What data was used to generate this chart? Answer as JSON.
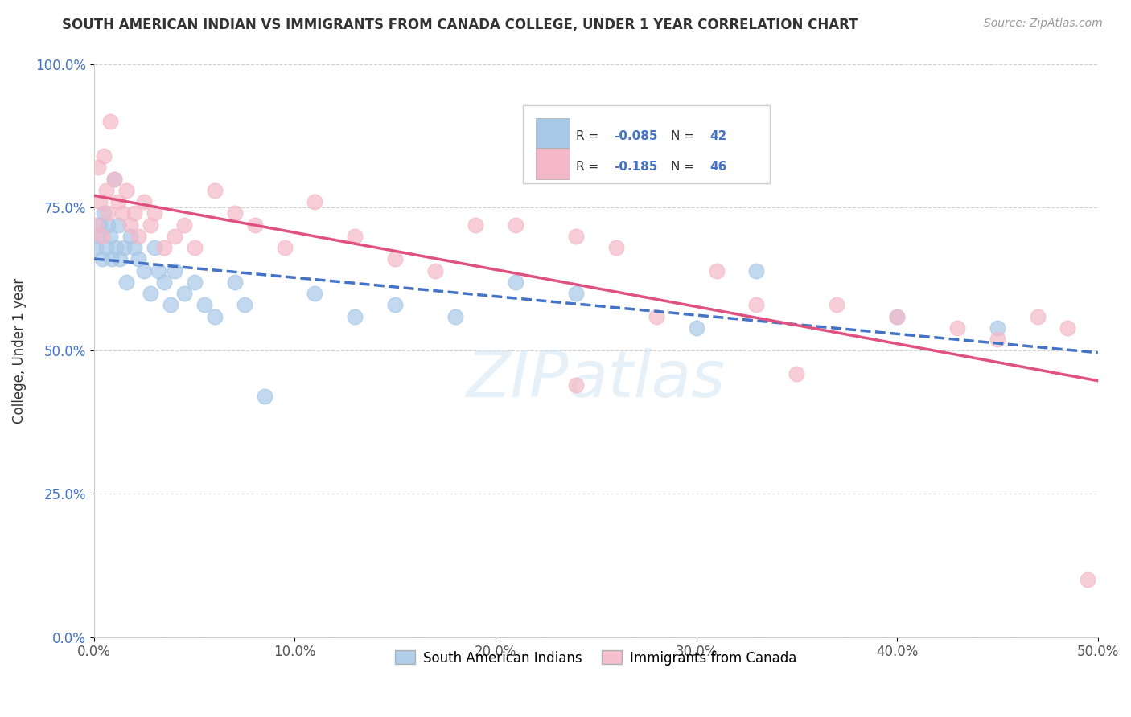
{
  "title": "SOUTH AMERICAN INDIAN VS IMMIGRANTS FROM CANADA COLLEGE, UNDER 1 YEAR CORRELATION CHART",
  "source_text": "Source: ZipAtlas.com",
  "ylabel": "College, Under 1 year",
  "xticklabels": [
    "0.0%",
    "10.0%",
    "20.0%",
    "30.0%",
    "40.0%",
    "50.0%"
  ],
  "yticklabels": [
    "0.0%",
    "25.0%",
    "50.0%",
    "75.0%",
    "100.0%"
  ],
  "xlim": [
    0,
    0.5
  ],
  "ylim": [
    0,
    1.0
  ],
  "legend_label1": "South American Indians",
  "legend_label2": "Immigrants from Canada",
  "R1": -0.085,
  "N1": 42,
  "R2": -0.185,
  "N2": 46,
  "color_blue": "#a8c8e8",
  "color_pink": "#f4b8c8",
  "line_color_blue": "#4472c4",
  "line_color_pink": "#e05080",
  "background_color": "#ffffff",
  "blue_x": [
    0.001,
    0.002,
    0.003,
    0.004,
    0.005,
    0.006,
    0.007,
    0.008,
    0.009,
    0.01,
    0.011,
    0.012,
    0.013,
    0.015,
    0.016,
    0.018,
    0.02,
    0.022,
    0.025,
    0.028,
    0.03,
    0.032,
    0.035,
    0.038,
    0.04,
    0.045,
    0.05,
    0.055,
    0.06,
    0.07,
    0.075,
    0.085,
    0.11,
    0.13,
    0.15,
    0.18,
    0.21,
    0.24,
    0.3,
    0.33,
    0.4,
    0.45
  ],
  "blue_y": [
    0.68,
    0.7,
    0.72,
    0.66,
    0.74,
    0.68,
    0.72,
    0.7,
    0.66,
    0.8,
    0.68,
    0.72,
    0.66,
    0.68,
    0.62,
    0.7,
    0.68,
    0.66,
    0.64,
    0.6,
    0.68,
    0.64,
    0.62,
    0.58,
    0.64,
    0.6,
    0.62,
    0.58,
    0.56,
    0.62,
    0.58,
    0.42,
    0.6,
    0.56,
    0.58,
    0.56,
    0.62,
    0.6,
    0.54,
    0.64,
    0.56,
    0.54
  ],
  "pink_x": [
    0.001,
    0.002,
    0.003,
    0.004,
    0.005,
    0.006,
    0.007,
    0.008,
    0.01,
    0.012,
    0.014,
    0.016,
    0.018,
    0.02,
    0.022,
    0.025,
    0.028,
    0.03,
    0.035,
    0.04,
    0.045,
    0.05,
    0.06,
    0.07,
    0.08,
    0.095,
    0.11,
    0.13,
    0.15,
    0.17,
    0.19,
    0.21,
    0.24,
    0.26,
    0.28,
    0.31,
    0.33,
    0.35,
    0.37,
    0.4,
    0.43,
    0.45,
    0.47,
    0.485,
    0.495,
    0.24
  ],
  "pink_y": [
    0.72,
    0.82,
    0.76,
    0.7,
    0.84,
    0.78,
    0.74,
    0.9,
    0.8,
    0.76,
    0.74,
    0.78,
    0.72,
    0.74,
    0.7,
    0.76,
    0.72,
    0.74,
    0.68,
    0.7,
    0.72,
    0.68,
    0.78,
    0.74,
    0.72,
    0.68,
    0.76,
    0.7,
    0.66,
    0.64,
    0.72,
    0.72,
    0.7,
    0.68,
    0.56,
    0.64,
    0.58,
    0.46,
    0.58,
    0.56,
    0.54,
    0.52,
    0.56,
    0.54,
    0.1,
    0.44
  ]
}
